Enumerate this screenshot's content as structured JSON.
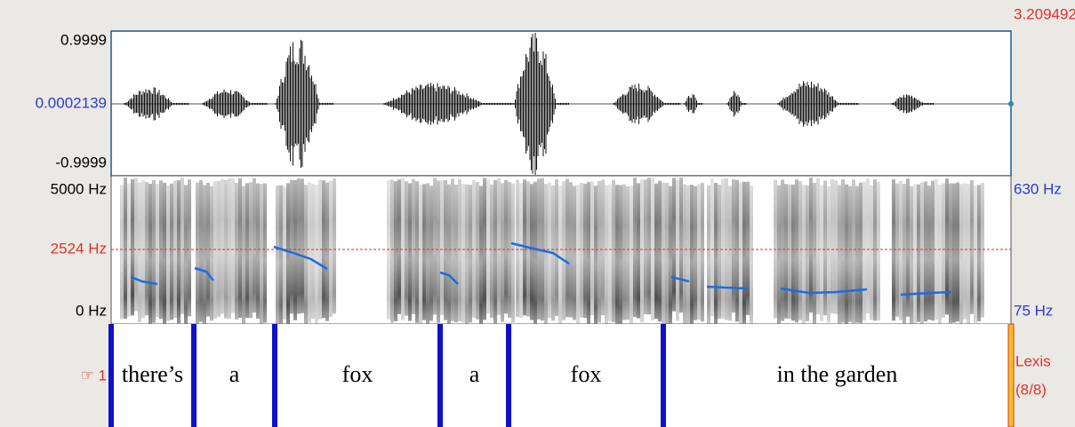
{
  "header": {
    "time": "3.209492"
  },
  "waveform": {
    "max": "0.9999",
    "center": "0.0002139",
    "min": "-0.9999"
  },
  "spectrogram": {
    "top": "5000 Hz",
    "cursor": "2524 Hz",
    "bottom": "0 Hz",
    "pitch_top": "630 Hz",
    "pitch_bottom": "75 Hz"
  },
  "tier": {
    "marker": "☞ 1",
    "name": "Lexis",
    "count": "(8/8)",
    "intervals": [
      "there’s",
      "a",
      "fox",
      "a",
      "fox",
      "in the garden"
    ]
  }
}
